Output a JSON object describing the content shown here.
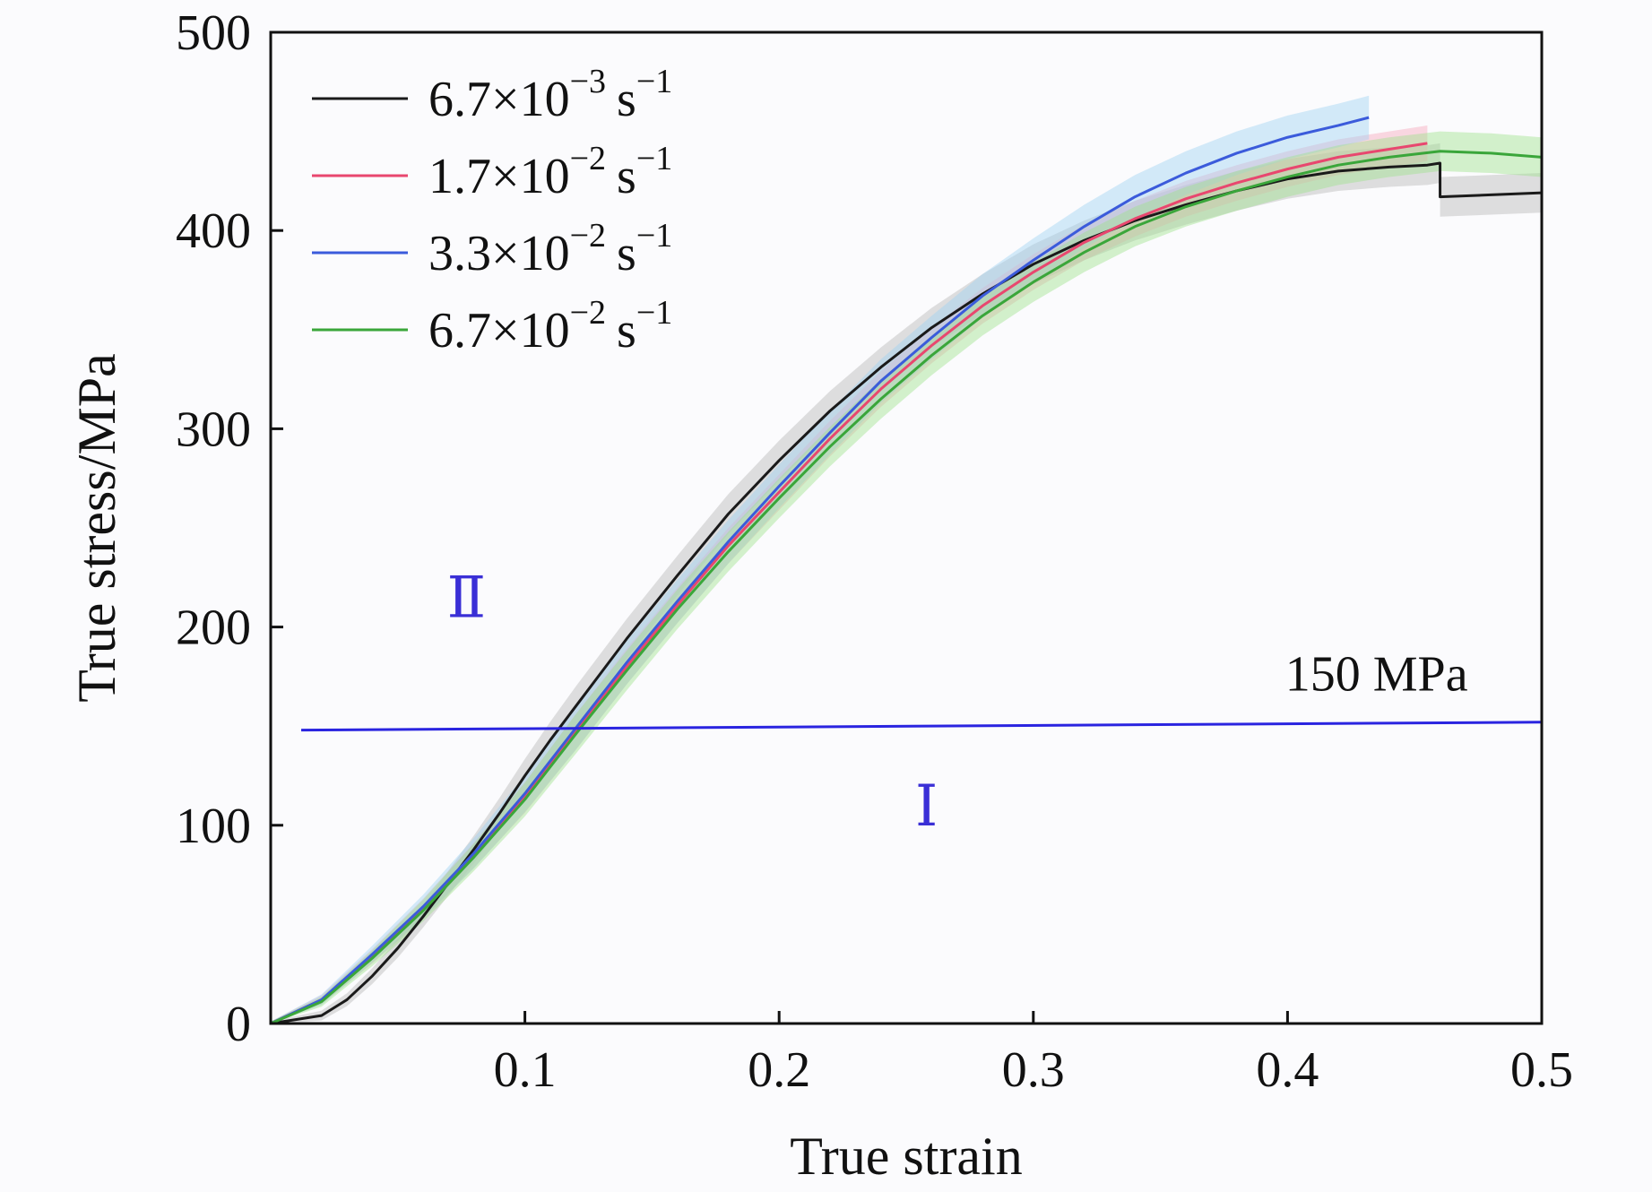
{
  "chart_data": {
    "type": "line",
    "title": "",
    "xlabel": "True strain",
    "ylabel": "True stress/MPa",
    "xlim": [
      0,
      0.5
    ],
    "ylim": [
      0,
      500
    ],
    "x_ticks": [
      0.1,
      0.2,
      0.3,
      0.4,
      0.5
    ],
    "x_tick_labels": [
      "0.1",
      "0.2",
      "0.3",
      "0.4",
      "0.5"
    ],
    "y_ticks": [
      0,
      100,
      200,
      300,
      400,
      500
    ],
    "y_tick_labels": [
      "0",
      "100",
      "200",
      "300",
      "400",
      "500"
    ],
    "grid": false,
    "legend_position": "top-left",
    "series": [
      {
        "name": "6.7×10⁻³ s⁻¹",
        "legend_base": "6.7×10",
        "legend_exp": "−3",
        "legend_unit": "s",
        "legend_unit_exp": "−1",
        "color": "#1a1a1a",
        "band_color": "#b8b8b8",
        "x": [
          0.0,
          0.02,
          0.03,
          0.04,
          0.05,
          0.06,
          0.07,
          0.08,
          0.09,
          0.1,
          0.11,
          0.12,
          0.13,
          0.14,
          0.15,
          0.16,
          0.18,
          0.2,
          0.22,
          0.24,
          0.26,
          0.28,
          0.3,
          0.32,
          0.34,
          0.36,
          0.38,
          0.4,
          0.42,
          0.44,
          0.455,
          0.46,
          0.46,
          0.48,
          0.5
        ],
        "y": [
          0,
          4,
          12,
          24,
          38,
          54,
          71,
          88,
          106,
          125,
          143,
          160,
          177,
          194,
          210,
          226,
          257,
          284,
          309,
          331,
          351,
          368,
          383,
          395,
          405,
          413,
          420,
          426,
          430,
          432,
          433,
          434,
          417,
          418,
          419
        ]
      },
      {
        "name": "1.7×10⁻² s⁻¹",
        "legend_base": "1.7×10",
        "legend_exp": "−2",
        "legend_unit": "s",
        "legend_unit_exp": "−1",
        "color": "#e8476f",
        "band_color": "#f6a9bd",
        "x": [
          0.0,
          0.02,
          0.04,
          0.06,
          0.08,
          0.1,
          0.12,
          0.14,
          0.16,
          0.18,
          0.2,
          0.22,
          0.24,
          0.26,
          0.28,
          0.3,
          0.32,
          0.34,
          0.36,
          0.38,
          0.4,
          0.42,
          0.44,
          0.455
        ],
        "y": [
          0,
          12,
          34,
          58,
          85,
          114,
          147,
          180,
          211,
          241,
          268,
          295,
          320,
          342,
          362,
          379,
          394,
          406,
          416,
          424,
          431,
          437,
          441,
          444
        ]
      },
      {
        "name": "3.3×10⁻² s⁻¹",
        "legend_base": "3.3×10",
        "legend_exp": "−2",
        "legend_unit": "s",
        "legend_unit_exp": "−1",
        "color": "#3b5bdb",
        "band_color": "#9fd3f2",
        "x": [
          0.0,
          0.02,
          0.04,
          0.06,
          0.08,
          0.1,
          0.12,
          0.14,
          0.16,
          0.18,
          0.2,
          0.22,
          0.24,
          0.26,
          0.28,
          0.3,
          0.32,
          0.34,
          0.36,
          0.38,
          0.4,
          0.42,
          0.432
        ],
        "y": [
          0,
          12,
          35,
          59,
          86,
          116,
          149,
          182,
          213,
          243,
          271,
          298,
          324,
          346,
          367,
          385,
          402,
          417,
          429,
          439,
          447,
          453,
          457
        ]
      },
      {
        "name": "6.7×10⁻² s⁻¹",
        "legend_base": "6.7×10",
        "legend_exp": "−2",
        "legend_unit": "s",
        "legend_unit_exp": "−1",
        "color": "#3aa63a",
        "band_color": "#9fe38f",
        "x": [
          0.0,
          0.02,
          0.04,
          0.06,
          0.08,
          0.1,
          0.12,
          0.14,
          0.16,
          0.18,
          0.2,
          0.22,
          0.24,
          0.26,
          0.28,
          0.3,
          0.32,
          0.34,
          0.36,
          0.38,
          0.4,
          0.42,
          0.44,
          0.46,
          0.48,
          0.5
        ],
        "y": [
          0,
          11,
          33,
          57,
          84,
          113,
          146,
          178,
          209,
          238,
          265,
          291,
          315,
          337,
          357,
          374,
          389,
          402,
          412,
          420,
          427,
          433,
          437,
          440,
          439,
          437
        ]
      }
    ],
    "reference_line": {
      "y_start": 148,
      "y_end": 152,
      "color": "#2a24e0",
      "label": "150 MPa"
    },
    "regions": [
      {
        "label": "Ⅱ",
        "x": 0.077,
        "y": 205,
        "color": "#3a2fd6"
      },
      {
        "label": "Ⅰ",
        "x": 0.258,
        "y": 100,
        "color": "#3a2fd6"
      }
    ]
  }
}
